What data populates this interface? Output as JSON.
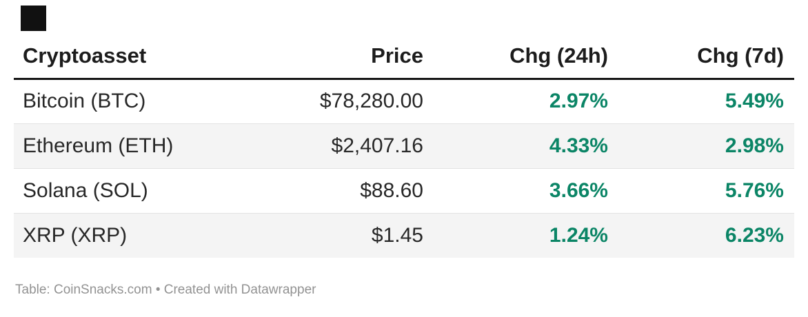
{
  "chart_data": {
    "type": "table",
    "title": "",
    "columns": [
      "Cryptoasset",
      "Price",
      "Chg (24h)",
      "Chg (7d)"
    ],
    "rows": [
      [
        "Bitcoin (BTC)",
        "$78,280.00",
        "2.97%",
        "5.49%"
      ],
      [
        "Ethereum (ETH)",
        "$2,407.16",
        "4.33%",
        "2.98%"
      ],
      [
        "Solana (SOL)",
        "$88.60",
        "3.66%",
        "5.76%"
      ],
      [
        "XRP (XRP)",
        "$1.45",
        "1.24%",
        "6.23%"
      ]
    ],
    "footer": "Table: CoinSnacks.com • Created with Datawrapper"
  },
  "header": {
    "col_asset": "Cryptoasset",
    "col_price": "Price",
    "col_chg24": "Chg (24h)",
    "col_chg7": "Chg (7d)"
  },
  "rows": [
    {
      "asset": "Bitcoin (BTC)",
      "price": "$78,280.00",
      "chg24": "2.97%",
      "chg7": "5.49%"
    },
    {
      "asset": "Ethereum (ETH)",
      "price": "$2,407.16",
      "chg24": "4.33%",
      "chg7": "2.98%"
    },
    {
      "asset": "Solana (SOL)",
      "price": "$88.60",
      "chg24": "3.66%",
      "chg7": "5.76%"
    },
    {
      "asset": "XRP (XRP)",
      "price": "$1.45",
      "chg24": "1.24%",
      "chg7": "6.23%"
    }
  ],
  "footer": {
    "text": "Table: CoinSnacks.com • Created with Datawrapper"
  },
  "colors": {
    "positive_change": "#0b8566",
    "row_stripe": "#f4f4f4",
    "header_rule": "#141414",
    "body_text": "#272727",
    "footer_text": "#929292",
    "logo": "#111111"
  }
}
